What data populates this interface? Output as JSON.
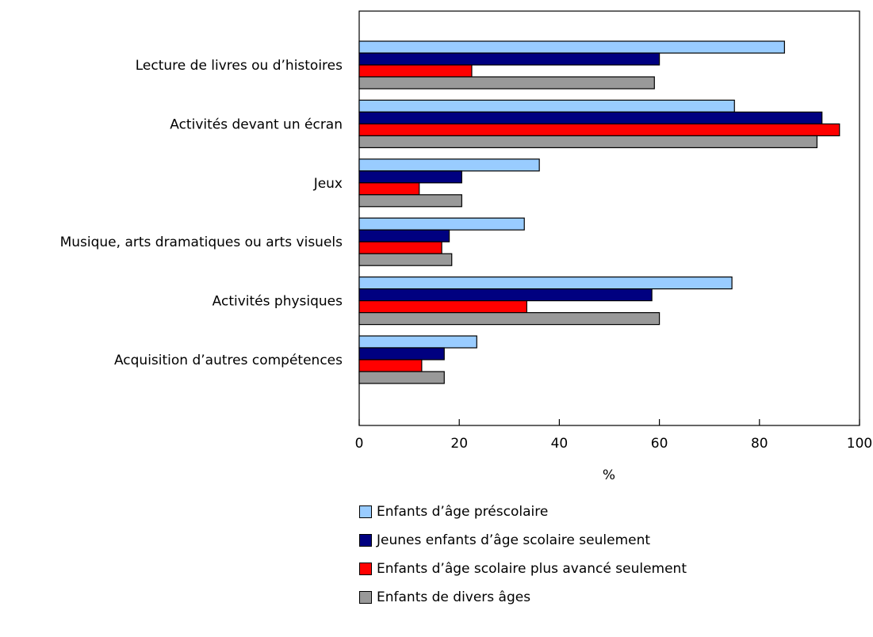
{
  "chart_data": {
    "type": "bar",
    "orientation": "horizontal",
    "categories": [
      "Lecture de livres ou d’histoires",
      "Activités devant un écran",
      "Jeux",
      "Musique, arts dramatiques ou arts visuels",
      "Activités physiques",
      "Acquisition d’autres compétences"
    ],
    "series": [
      {
        "name": "Enfants d’âge préscolaire",
        "color": "#99ccff",
        "values": [
          85,
          75,
          36,
          33,
          74.5,
          23.5
        ]
      },
      {
        "name": "Jeunes enfants d’âge scolaire seulement",
        "color": "#000080",
        "values": [
          60,
          92.5,
          20.5,
          18,
          58.5,
          17
        ]
      },
      {
        "name": "Enfants d’âge scolaire plus avancé seulement",
        "color": "#ff0000",
        "values": [
          22.5,
          96,
          12,
          16.5,
          33.5,
          12.5
        ]
      },
      {
        "name": "Enfants de divers âges",
        "color": "#999999",
        "values": [
          59,
          91.5,
          20.5,
          18.5,
          60,
          17
        ]
      }
    ],
    "xlim": [
      0,
      100
    ],
    "xticks": [
      0,
      20,
      40,
      60,
      80,
      100
    ],
    "xlabel": "%",
    "grid": false,
    "legend_position": "bottom"
  }
}
